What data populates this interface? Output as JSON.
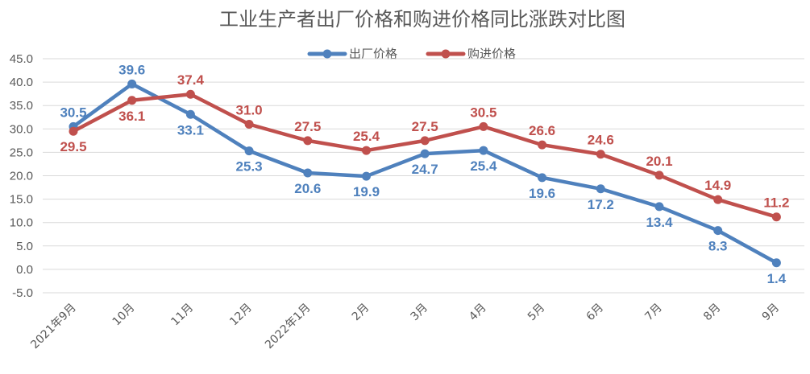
{
  "chart_data": {
    "type": "line",
    "title": "工业生产者出厂价格和购进价格同比涨跌对比图",
    "categories": [
      "2021年9月",
      "10月",
      "11月",
      "12月",
      "2022年1月",
      "2月",
      "3月",
      "4月",
      "5月",
      "6月",
      "7月",
      "8月",
      "9月"
    ],
    "series": [
      {
        "name": "出厂价格",
        "color": "#4f81bd",
        "values": [
          30.5,
          39.6,
          33.1,
          25.3,
          20.6,
          19.9,
          24.7,
          25.4,
          19.6,
          17.2,
          13.4,
          8.3,
          1.4
        ]
      },
      {
        "name": "购进价格",
        "color": "#c0504d",
        "values": [
          29.5,
          36.1,
          37.4,
          31.0,
          27.5,
          25.4,
          27.5,
          30.5,
          26.6,
          24.6,
          20.1,
          14.9,
          11.2
        ]
      }
    ],
    "ylim": [
      -5,
      45
    ],
    "yticks": [
      "-5.0",
      "0.0",
      "5.0",
      "10.0",
      "15.0",
      "20.0",
      "25.0",
      "30.0",
      "35.0",
      "40.0",
      "45.0"
    ],
    "grid": true,
    "legend": "top-center"
  }
}
